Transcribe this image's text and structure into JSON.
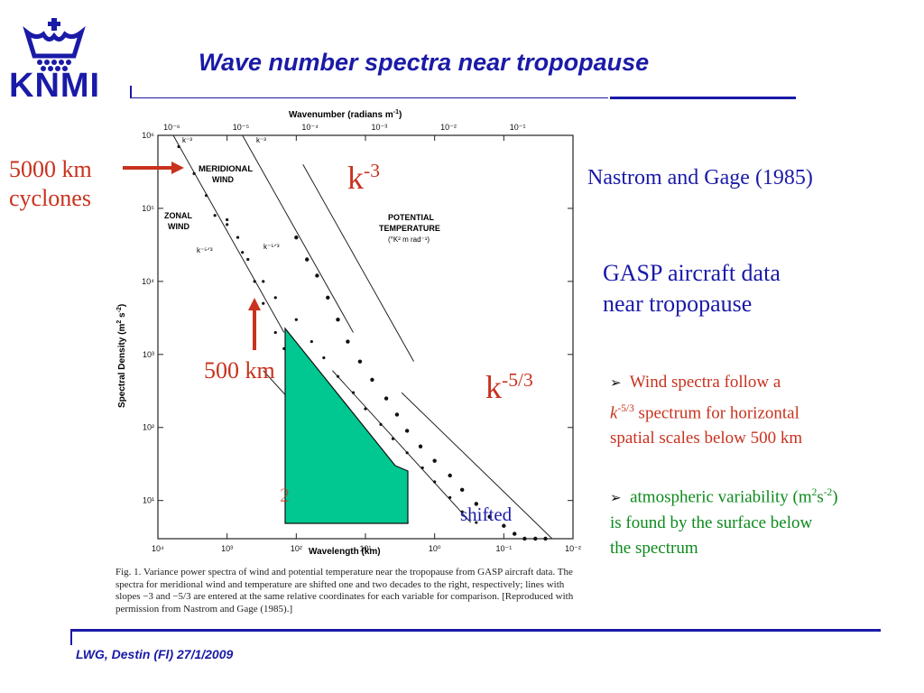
{
  "header": {
    "logo_text": "KNMI",
    "title": "Wave number spectra near tropopause"
  },
  "annotations": {
    "cyclones_line1": "5000 km",
    "cyclones_line2": "cyclones",
    "mesoscale": "500 km",
    "k3_base": "k",
    "k3_exp": "-3",
    "k53_base": "k",
    "k53_exp": "-5/3",
    "shifted": "shifted",
    "hidden_digit": "2"
  },
  "right_panel": {
    "reference": "Nastrom and Gage (1985)",
    "gasp_line1": "GASP aircraft data",
    "gasp_line2": "near tropopause",
    "bullet1_pre": "Wind spectra follow a",
    "bullet1_k": "k",
    "bullet1_exp": "-5/3",
    "bullet1_rest": " spectrum for horizontal",
    "bullet1_line3": "spatial scales below 500 km",
    "bullet2_pre": "atmospheric variability (m",
    "bullet2_sup1": "2",
    "bullet2_mid": "s",
    "bullet2_sup2": "-2",
    "bullet2_end": ")",
    "bullet2_line2": "is found by the surface below",
    "bullet2_line3": "the spectrum"
  },
  "figure": {
    "top_axis_label": "Wavenumber (radians m",
    "top_axis_label_exp": "-1",
    "top_axis_label_end": ")",
    "bottom_axis_label": "Wavelength (km)",
    "y_axis_label": "Spectral Density (m",
    "y_axis_label_exp1": "2",
    "y_axis_label_mid": " s",
    "y_axis_label_exp2": "-2",
    "y_axis_label_end": ")",
    "meridional_label_1": "MERIDIONAL",
    "meridional_label_2": "WIND",
    "zonal_label_1": "ZONAL",
    "zonal_label_2": "WIND",
    "potential_label_1": "POTENTIAL",
    "potential_label_2": "TEMPERATURE",
    "potential_label_3": "(°K² m rad⁻¹)",
    "slope_k3_a": "k⁻³",
    "slope_k3_b": "k⁻³",
    "slope_k53_a": "k⁻⁵ᐟ³",
    "slope_k53_b": "k⁻⁵ᐟ³",
    "caption": "Fig. 1. Variance power spectra of wind and potential temperature near the tropopause from GASP aircraft data. The spectra for meridional wind and temperature are shifted one and two decades to the right, respectively; lines with slopes −3 and −5/3 are entered at the same relative coordinates for each variable for comparison. [Reproduced with permission from Nastrom and Gage (1985).]"
  },
  "footer": {
    "text": "LWG, Destin (Fl) 27/1/2009"
  },
  "colors": {
    "brand_blue": "#1a1aa8",
    "annotation_red": "#c8321e",
    "bullet_green": "#0c8a1c",
    "area_fill": "#00c890"
  },
  "chart_data": {
    "type": "scatter",
    "title": "",
    "xlabel": "Wavelength (km)",
    "x2label": "Wavenumber (radians m-1)",
    "ylabel": "Spectral Density (m2 s-2)",
    "x_scale": "log",
    "y_scale": "log",
    "xlim": [
      10000,
      0.01
    ],
    "ylim": [
      3,
      1000000
    ],
    "x_ticks": [
      "10⁴",
      "10³",
      "10²",
      "10¹",
      "10⁰",
      "10⁻¹",
      "10⁻²"
    ],
    "x2_ticks": [
      "10⁻⁶",
      "10⁻⁵",
      "10⁻⁴",
      "10⁻³",
      "10⁻²",
      "10⁻¹"
    ],
    "y_ticks": [
      "10⁶",
      "10⁵",
      "10⁴",
      "10³",
      "10²",
      "10¹"
    ],
    "series": [
      {
        "name": "ZONAL WIND",
        "x": [
          5000,
          3000,
          2000,
          1000,
          600,
          400,
          300,
          200,
          150,
          100,
          70,
          50,
          35,
          25,
          18,
          12,
          8,
          5,
          3.5,
          2.5
        ],
        "y": [
          700000,
          300000,
          150000,
          70000,
          25000,
          10000,
          5000,
          2000,
          1200,
          600,
          350,
          200,
          120,
          70,
          45,
          28,
          18,
          11,
          7,
          5
        ]
      },
      {
        "name": "MERIDIONAL WIND",
        "x": [
          1500,
          1000,
          700,
          500,
          300,
          200,
          100,
          60,
          40,
          25,
          15,
          10,
          6,
          4,
          2.5,
          1.5,
          1,
          0.6,
          0.4,
          0.25
        ],
        "y": [
          80000,
          60000,
          40000,
          20000,
          10000,
          6000,
          3000,
          1500,
          900,
          500,
          300,
          180,
          110,
          70,
          45,
          28,
          18,
          11,
          7,
          5
        ]
      },
      {
        "name": "POTENTIAL TEMPERATURE",
        "x": [
          100,
          70,
          50,
          35,
          25,
          18,
          12,
          8,
          5,
          3.5,
          2.5,
          1.6,
          1,
          0.6,
          0.4,
          0.25,
          0.16,
          0.1,
          0.07,
          0.05,
          0.035,
          0.025
        ],
        "y": [
          40000,
          20000,
          12000,
          6000,
          3000,
          1500,
          800,
          450,
          250,
          150,
          90,
          55,
          35,
          22,
          14,
          9,
          6,
          4.5,
          3.5,
          3,
          3,
          3
        ]
      }
    ],
    "slope_lines": [
      "k⁻³",
      "k⁻⁵ᐟ³"
    ]
  }
}
